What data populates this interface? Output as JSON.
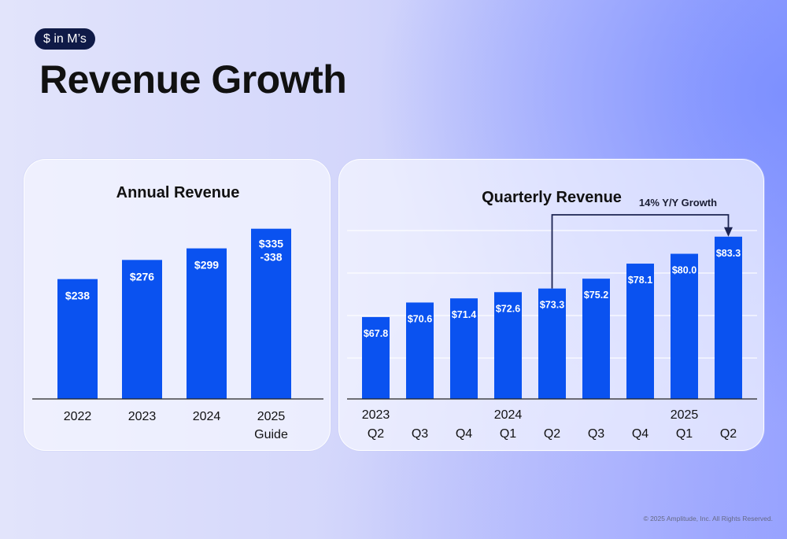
{
  "header": {
    "badge": "$ in M’s",
    "title": "Revenue Growth"
  },
  "colors": {
    "bar": "#0a52f0",
    "badge_bg": "#0f1a47",
    "arrow": "#1c2452"
  },
  "chart_data": [
    {
      "type": "bar",
      "title": "Annual Revenue",
      "categories": [
        "2022",
        "2023",
        "2024",
        "2025 Guide"
      ],
      "category_labels": [
        [
          "2022"
        ],
        [
          "2023"
        ],
        [
          "2024"
        ],
        [
          "2025",
          "Guide"
        ]
      ],
      "values": [
        238,
        276,
        299,
        338
      ],
      "value_labels": [
        [
          "$238"
        ],
        [
          "$276"
        ],
        [
          "$299"
        ],
        [
          "$335",
          "-338"
        ]
      ],
      "range_low": [
        null,
        null,
        null,
        335
      ],
      "xlabel": "",
      "ylabel": "",
      "ylim": [
        0,
        350
      ],
      "grid": false,
      "legend": false
    },
    {
      "type": "bar",
      "title": "Quarterly Revenue",
      "categories": [
        "2023 Q2",
        "2023 Q3",
        "2023 Q4",
        "2024 Q1",
        "2024 Q2",
        "2024 Q3",
        "2024 Q4",
        "2025 Q1",
        "2025 Q2"
      ],
      "quarter_labels": [
        "Q2",
        "Q3",
        "Q4",
        "Q1",
        "Q2",
        "Q3",
        "Q4",
        "Q1",
        "Q2"
      ],
      "year_labels": [
        "2023",
        "",
        "",
        "2024",
        "",
        "",
        "",
        "2025",
        ""
      ],
      "values": [
        67.8,
        70.6,
        71.4,
        72.6,
        73.3,
        75.2,
        78.1,
        80.0,
        83.3
      ],
      "value_labels": [
        "$67.8",
        "$70.6",
        "$71.4",
        "$72.6",
        "$73.3",
        "$75.2",
        "$78.1",
        "$80.0",
        "$83.3"
      ],
      "xlabel": "",
      "ylabel": "",
      "ylim": [
        52,
        86
      ],
      "grid": true,
      "legend": false,
      "annotation": {
        "text": "14% Y/Y Growth",
        "from_index": 4,
        "to_index": 8
      }
    }
  ],
  "footer": {
    "copyright": "© 2025 Amplitude, Inc.  All Rights Reserved."
  }
}
